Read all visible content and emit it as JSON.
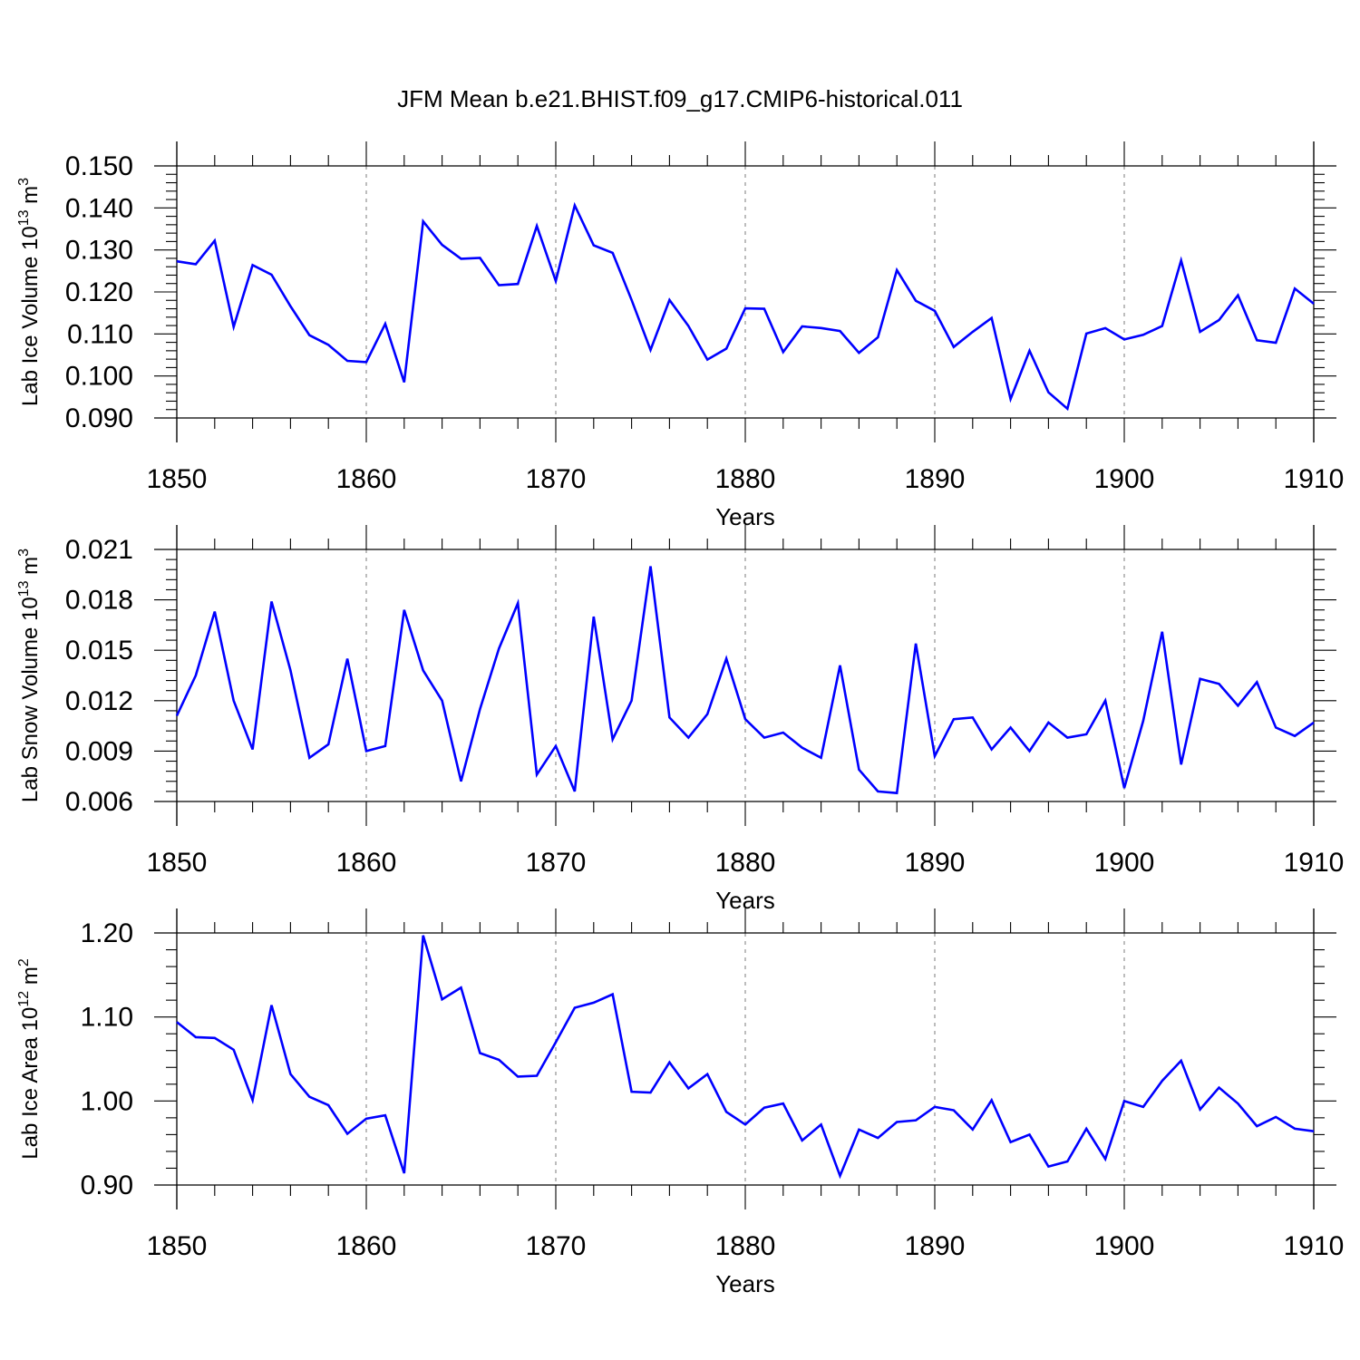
{
  "figure_title": "JFM Mean b.e21.BHIST.f09_g17.CMIP6-historical.011",
  "colors": {
    "line": "#0000ff",
    "axis": "#000000",
    "grid": "#999999",
    "background": "#ffffff"
  },
  "chart_data": [
    {
      "type": "line",
      "ylabel_parts": [
        "Lab Ice Volume 10",
        "13",
        " m",
        "3"
      ],
      "xlabel": "Years",
      "xlim": [
        1850,
        1910
      ],
      "ylim": [
        0.09,
        0.15
      ],
      "xticks": [
        "1850",
        "1860",
        "1870",
        "1880",
        "1890",
        "1900",
        "1910"
      ],
      "yticks": [
        "0.090",
        "0.100",
        "0.110",
        "0.120",
        "0.130",
        "0.140",
        "0.150"
      ],
      "grid": "dashed vertical lines at x major ticks",
      "legend": "none",
      "series": [
        {
          "x": [
            1850,
            1851,
            1852,
            1853,
            1854,
            1855,
            1856,
            1857,
            1858,
            1859,
            1860,
            1861,
            1862,
            1863,
            1864,
            1865,
            1866,
            1867,
            1868,
            1869,
            1870,
            1871,
            1872,
            1873,
            1874,
            1875,
            1876,
            1877,
            1878,
            1879,
            1880,
            1881,
            1882,
            1883,
            1884,
            1885,
            1886,
            1887,
            1888,
            1889,
            1890,
            1891,
            1892,
            1893,
            1894,
            1895,
            1896,
            1897,
            1898,
            1899,
            1900,
            1901,
            1902,
            1903,
            1904,
            1905,
            1906,
            1907,
            1908,
            1909,
            1910
          ],
          "values": [
            0.1273,
            0.1266,
            0.1322,
            0.1117,
            0.1264,
            0.1241,
            0.1166,
            0.1097,
            0.1074,
            0.1036,
            0.1033,
            0.1124,
            0.0985,
            0.1368,
            0.1312,
            0.1279,
            0.1281,
            0.1216,
            0.1219,
            0.1357,
            0.1226,
            0.1406,
            0.1311,
            0.1293,
            0.1181,
            0.1062,
            0.1181,
            0.1119,
            0.1039,
            0.1065,
            0.1161,
            0.116,
            0.1057,
            0.1118,
            0.1114,
            0.1107,
            0.1055,
            0.1092,
            0.1252,
            0.1179,
            0.1155,
            0.1069,
            0.1105,
            0.1138,
            0.0945,
            0.106,
            0.0961,
            0.0922,
            0.1101,
            0.1114,
            0.1087,
            0.1098,
            0.1119,
            0.1275,
            0.1105,
            0.1133,
            0.1192,
            0.1085,
            0.1079,
            0.1208,
            0.1172
          ]
        }
      ]
    },
    {
      "type": "line",
      "ylabel_parts": [
        "Lab Snow Volume 10",
        "13",
        " m",
        "3"
      ],
      "xlabel": "Years",
      "xlim": [
        1850,
        1910
      ],
      "ylim": [
        0.006,
        0.021
      ],
      "xticks": [
        "1850",
        "1860",
        "1870",
        "1880",
        "1890",
        "1900",
        "1910"
      ],
      "yticks": [
        "0.006",
        "0.009",
        "0.012",
        "0.015",
        "0.018",
        "0.021"
      ],
      "grid": "dashed vertical lines at x major ticks",
      "legend": "none",
      "series": [
        {
          "x": [
            1850,
            1851,
            1852,
            1853,
            1854,
            1855,
            1856,
            1857,
            1858,
            1859,
            1860,
            1861,
            1862,
            1863,
            1864,
            1865,
            1866,
            1867,
            1868,
            1869,
            1870,
            1871,
            1872,
            1873,
            1874,
            1875,
            1876,
            1877,
            1878,
            1879,
            1880,
            1881,
            1882,
            1883,
            1884,
            1885,
            1886,
            1887,
            1888,
            1889,
            1890,
            1891,
            1892,
            1893,
            1894,
            1895,
            1896,
            1897,
            1898,
            1899,
            1900,
            1901,
            1902,
            1903,
            1904,
            1905,
            1906,
            1907,
            1908,
            1909,
            1910
          ],
          "values": [
            0.0111,
            0.0135,
            0.0173,
            0.012,
            0.0091,
            0.0179,
            0.0138,
            0.0086,
            0.0094,
            0.0145,
            0.009,
            0.0093,
            0.0174,
            0.0138,
            0.012,
            0.0072,
            0.0115,
            0.0151,
            0.0178,
            0.0076,
            0.0093,
            0.0066,
            0.017,
            0.0097,
            0.012,
            0.02,
            0.011,
            0.0098,
            0.0112,
            0.0145,
            0.0109,
            0.0098,
            0.0101,
            0.0092,
            0.0086,
            0.0141,
            0.0079,
            0.0066,
            0.0065,
            0.0154,
            0.0087,
            0.0109,
            0.011,
            0.0091,
            0.0104,
            0.009,
            0.0107,
            0.0098,
            0.01,
            0.012,
            0.0068,
            0.0108,
            0.0161,
            0.0082,
            0.0133,
            0.013,
            0.0117,
            0.0131,
            0.0104,
            0.0099,
            0.0107
          ]
        }
      ]
    },
    {
      "type": "line",
      "ylabel_parts": [
        "Lab Ice Area 10",
        "12",
        " m",
        "2"
      ],
      "xlabel": "Years",
      "xlim": [
        1850,
        1910
      ],
      "ylim": [
        0.9,
        1.2
      ],
      "xticks": [
        "1850",
        "1860",
        "1870",
        "1880",
        "1890",
        "1900",
        "1910"
      ],
      "yticks": [
        "0.90",
        "1.00",
        "1.10",
        "1.20"
      ],
      "grid": "dashed vertical lines at x major ticks",
      "legend": "none",
      "series": [
        {
          "x": [
            1850,
            1851,
            1852,
            1853,
            1854,
            1855,
            1856,
            1857,
            1858,
            1859,
            1860,
            1861,
            1862,
            1863,
            1864,
            1865,
            1866,
            1867,
            1868,
            1869,
            1870,
            1871,
            1872,
            1873,
            1874,
            1875,
            1876,
            1877,
            1878,
            1879,
            1880,
            1881,
            1882,
            1883,
            1884,
            1885,
            1886,
            1887,
            1888,
            1889,
            1890,
            1891,
            1892,
            1893,
            1894,
            1895,
            1896,
            1897,
            1898,
            1899,
            1900,
            1901,
            1902,
            1903,
            1904,
            1905,
            1906,
            1907,
            1908,
            1909,
            1910
          ],
          "values": [
            1.094,
            1.076,
            1.075,
            1.061,
            1.001,
            1.114,
            1.032,
            1.005,
            0.995,
            0.961,
            0.979,
            0.983,
            0.914,
            1.197,
            1.121,
            1.135,
            1.057,
            1.049,
            1.029,
            1.03,
            1.07,
            1.111,
            1.117,
            1.127,
            1.011,
            1.01,
            1.046,
            1.015,
            1.032,
            0.987,
            0.972,
            0.992,
            0.997,
            0.953,
            0.972,
            0.911,
            0.966,
            0.956,
            0.975,
            0.977,
            0.993,
            0.989,
            0.966,
            1.001,
            0.951,
            0.96,
            0.922,
            0.928,
            0.967,
            0.931,
            1.0,
            0.993,
            1.024,
            1.048,
            0.99,
            1.016,
            0.997,
            0.97,
            0.981,
            0.967,
            0.964
          ]
        }
      ]
    }
  ]
}
